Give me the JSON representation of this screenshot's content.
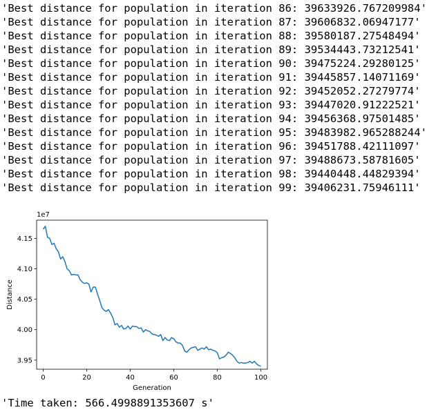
{
  "output": {
    "lines": [
      "'Best distance for population in iteration 86: 39633926.767209984'",
      "'Best distance for population in iteration 87: 39606832.06947177'",
      "'Best distance for population in iteration 88: 39580187.27548494'",
      "'Best distance for population in iteration 89: 39534443.73212541'",
      "'Best distance for population in iteration 90: 39475224.29280125'",
      "'Best distance for population in iteration 91: 39445857.14071169'",
      "'Best distance for population in iteration 92: 39452052.27279774'",
      "'Best distance for population in iteration 93: 39447020.91222521'",
      "'Best distance for population in iteration 94: 39456368.97501485'",
      "'Best distance for population in iteration 95: 39483982.965288244'",
      "'Best distance for population in iteration 96: 39451788.42111097'",
      "'Best distance for population in iteration 97: 39488673.58781605'",
      "'Best distance for population in iteration 98: 39440448.44829394'",
      "'Best distance for population in iteration 99: 39406231.75946111'"
    ],
    "time_taken": "'Time taken: 566.4998891353607 s'"
  },
  "chart_data": {
    "type": "line",
    "xlabel": "Generation",
    "ylabel": "Distance",
    "offset_label": "1e7",
    "xlim": [
      -3,
      103
    ],
    "ylim": [
      3.935,
      4.18
    ],
    "xticks": [
      0,
      20,
      40,
      60,
      80,
      100
    ],
    "xtick_labels": [
      "0",
      "20",
      "40",
      "60",
      "80",
      "100"
    ],
    "yticks": [
      3.95,
      4.0,
      4.05,
      4.1,
      4.15
    ],
    "ytick_labels": [
      "3.95",
      "4.00",
      "4.05",
      "4.10",
      "4.15"
    ],
    "grid": false,
    "line_color": "#1f77b4",
    "series": [
      {
        "x": [
          0,
          1,
          2,
          3,
          4,
          5,
          6,
          7,
          8,
          9,
          10,
          11,
          12,
          13,
          14,
          15,
          16,
          17,
          18,
          19,
          20,
          21,
          22,
          23,
          24,
          25,
          26,
          27,
          28,
          29,
          30,
          31,
          32,
          33,
          34,
          35,
          36,
          37,
          38,
          39,
          40,
          41,
          42,
          43,
          44,
          45,
          46,
          47,
          48,
          49,
          50,
          51,
          52,
          53,
          54,
          55,
          56,
          57,
          58,
          59,
          60,
          61,
          62,
          63,
          64,
          65,
          66,
          67,
          68,
          69,
          70,
          71,
          72,
          73,
          74,
          75,
          76,
          77,
          78,
          79,
          80,
          81,
          82,
          83,
          84,
          85,
          86,
          87,
          88,
          89,
          90,
          91,
          92,
          93,
          94,
          95,
          96,
          97,
          98,
          99,
          100
        ],
        "values": [
          4.165,
          4.17,
          4.152,
          4.15,
          4.14,
          4.142,
          4.133,
          4.128,
          4.116,
          4.12,
          4.112,
          4.1,
          4.097,
          4.09,
          4.091,
          4.09,
          4.09,
          4.082,
          4.078,
          4.076,
          4.077,
          4.075,
          4.062,
          4.07,
          4.07,
          4.058,
          4.048,
          4.036,
          4.032,
          4.03,
          4.033,
          4.027,
          4.02,
          4.008,
          4.01,
          4.004,
          4.007,
          4.001,
          4.002,
          4.006,
          4.001,
          4.006,
          4.005,
          4.005,
          4.002,
          4.003,
          3.996,
          4.0,
          3.998,
          3.997,
          3.993,
          3.992,
          3.991,
          3.989,
          3.992,
          3.982,
          3.987,
          3.983,
          3.982,
          3.987,
          3.985,
          3.98,
          3.978,
          3.978,
          3.974,
          3.965,
          3.963,
          3.967,
          3.97,
          3.971,
          3.972,
          3.966,
          3.968,
          3.97,
          3.968,
          3.972,
          3.967,
          3.968,
          3.966,
          3.965,
          3.962,
          3.952,
          3.954,
          3.955,
          3.958,
          3.963,
          3.961,
          3.958,
          3.954,
          3.948,
          3.945,
          3.946,
          3.945,
          3.945,
          3.946,
          3.948,
          3.945,
          3.948,
          3.944,
          3.941,
          3.94
        ]
      }
    ]
  }
}
